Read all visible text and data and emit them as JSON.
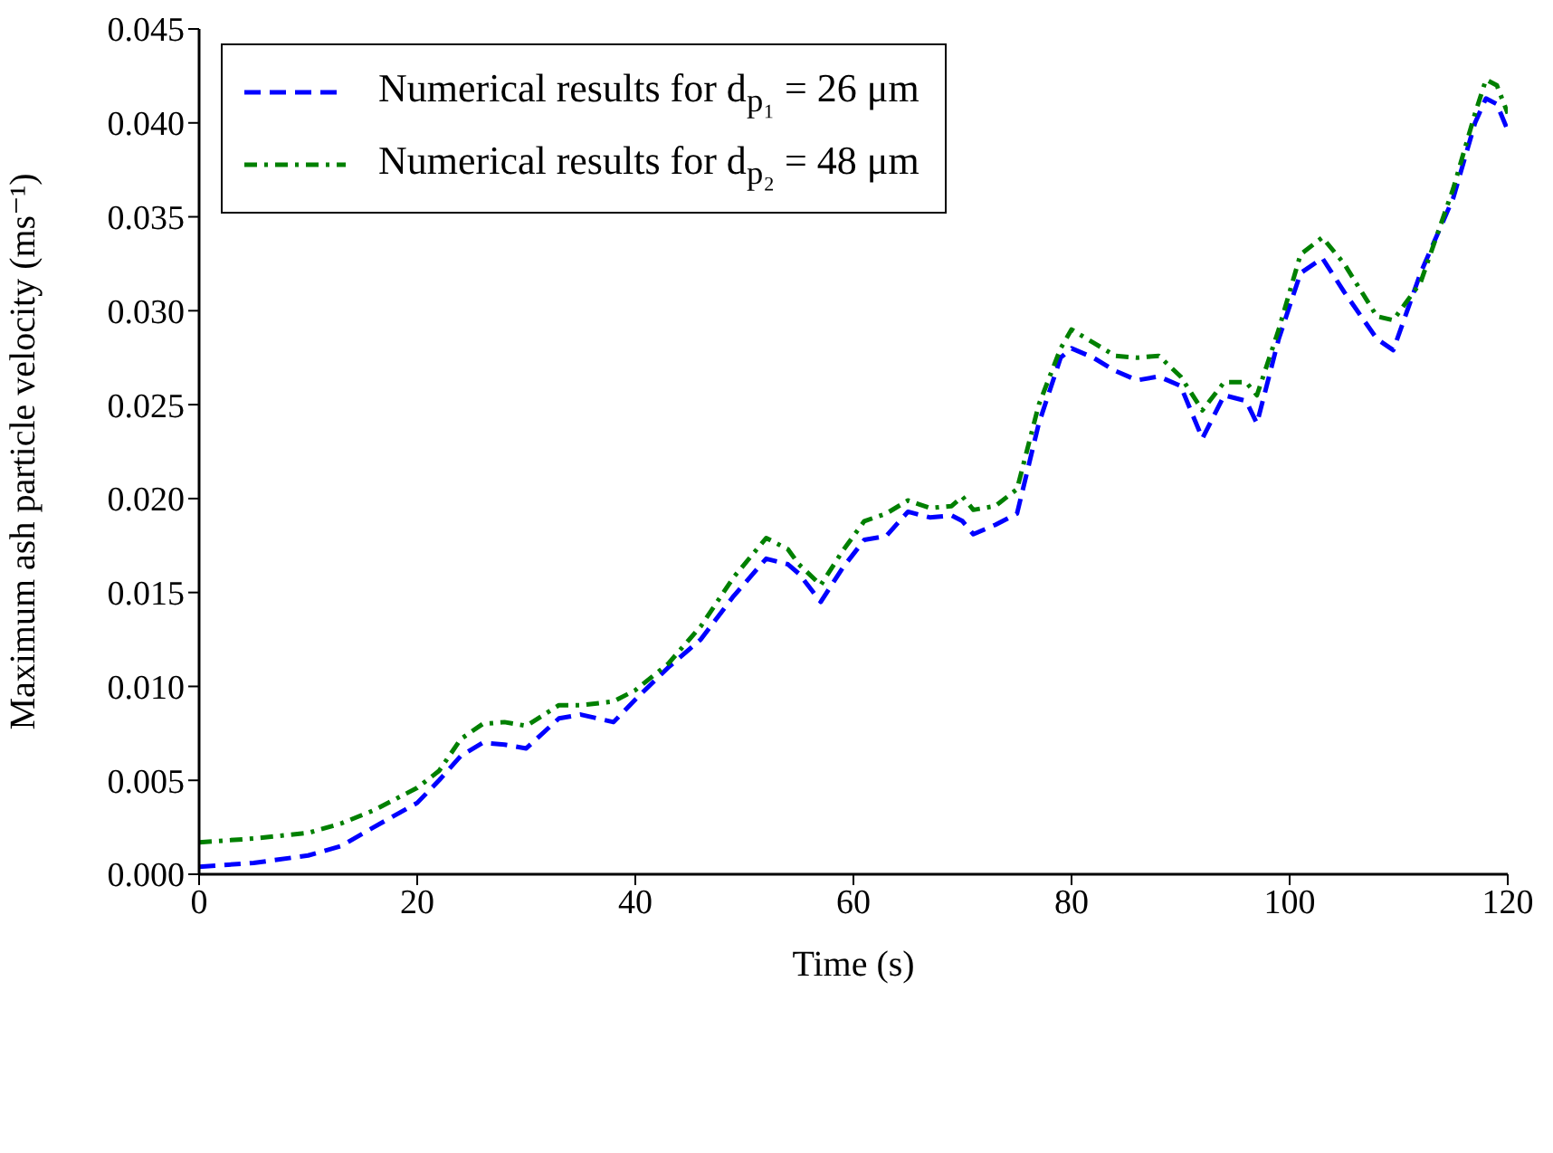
{
  "chart_data": {
    "type": "line",
    "xlabel": "Time (s)",
    "ylabel": "Maximum ash particle velocity (ms⁻¹)",
    "x": [
      0,
      5,
      10,
      13,
      16,
      20,
      22,
      24,
      26,
      28,
      30,
      33,
      35,
      38,
      40,
      43,
      46,
      49,
      52,
      54,
      55,
      57,
      59,
      61,
      63,
      65,
      67,
      69,
      70,
      71,
      73,
      75,
      77,
      79,
      80,
      82,
      84,
      86,
      88,
      90,
      92,
      94,
      96,
      97,
      99,
      101,
      103,
      105,
      108,
      109.5,
      112,
      115,
      117,
      118,
      119,
      120
    ],
    "series": [
      {
        "name": "Numerical results for d$_{p₁}$ = 26 μm",
        "color": "#0000ff",
        "line_style": "dashed",
        "values": [
          0.0004,
          0.0006,
          0.001,
          0.0015,
          0.0025,
          0.0038,
          0.005,
          0.0063,
          0.007,
          0.0069,
          0.0067,
          0.0083,
          0.0085,
          0.0081,
          0.0093,
          0.011,
          0.0125,
          0.0148,
          0.0168,
          0.0165,
          0.016,
          0.0145,
          0.0163,
          0.0178,
          0.018,
          0.0193,
          0.019,
          0.0191,
          0.0188,
          0.0181,
          0.0186,
          0.0192,
          0.024,
          0.0275,
          0.028,
          0.0275,
          0.0268,
          0.0263,
          0.0265,
          0.026,
          0.0232,
          0.0255,
          0.0252,
          0.024,
          0.0285,
          0.032,
          0.0328,
          0.031,
          0.0285,
          0.0279,
          0.032,
          0.036,
          0.04,
          0.0413,
          0.041,
          0.0396
        ]
      },
      {
        "name": "Numerical results for d$_{p₂}$ = 48 μm",
        "color": "#008000",
        "line_style": "dashdot",
        "values": [
          0.0017,
          0.0019,
          0.0022,
          0.0027,
          0.0034,
          0.0046,
          0.0055,
          0.0072,
          0.008,
          0.0081,
          0.0079,
          0.009,
          0.009,
          0.0092,
          0.0098,
          0.0112,
          0.0132,
          0.0158,
          0.0179,
          0.0173,
          0.0165,
          0.0154,
          0.0172,
          0.0188,
          0.0192,
          0.0199,
          0.0195,
          0.0196,
          0.0201,
          0.0194,
          0.0196,
          0.0205,
          0.025,
          0.028,
          0.029,
          0.0283,
          0.0276,
          0.0275,
          0.0276,
          0.0265,
          0.0247,
          0.0262,
          0.0262,
          0.0255,
          0.029,
          0.033,
          0.0339,
          0.0325,
          0.0297,
          0.0295,
          0.0315,
          0.0365,
          0.0405,
          0.0423,
          0.042,
          0.0405
        ]
      }
    ],
    "xlim": [
      0,
      120
    ],
    "xticks": [
      0,
      20,
      40,
      60,
      80,
      100,
      120
    ],
    "ylim": [
      0,
      0.045
    ],
    "yticks": [
      {
        "value": 0,
        "label": "0.000"
      },
      {
        "value": 0.005,
        "label": "0.005"
      },
      {
        "value": 0.01,
        "label": "0.010"
      },
      {
        "value": 0.015,
        "label": "0.015"
      },
      {
        "value": 0.02,
        "label": "0.020"
      },
      {
        "value": 0.025,
        "label": "0.025"
      },
      {
        "value": 0.03,
        "label": "0.030"
      },
      {
        "value": 0.035,
        "label": "0.035"
      },
      {
        "value": 0.04,
        "label": "0.040"
      },
      {
        "value": 0.045,
        "label": "0.045"
      }
    ],
    "legend": "top left",
    "grid": false,
    "marker": "none"
  }
}
